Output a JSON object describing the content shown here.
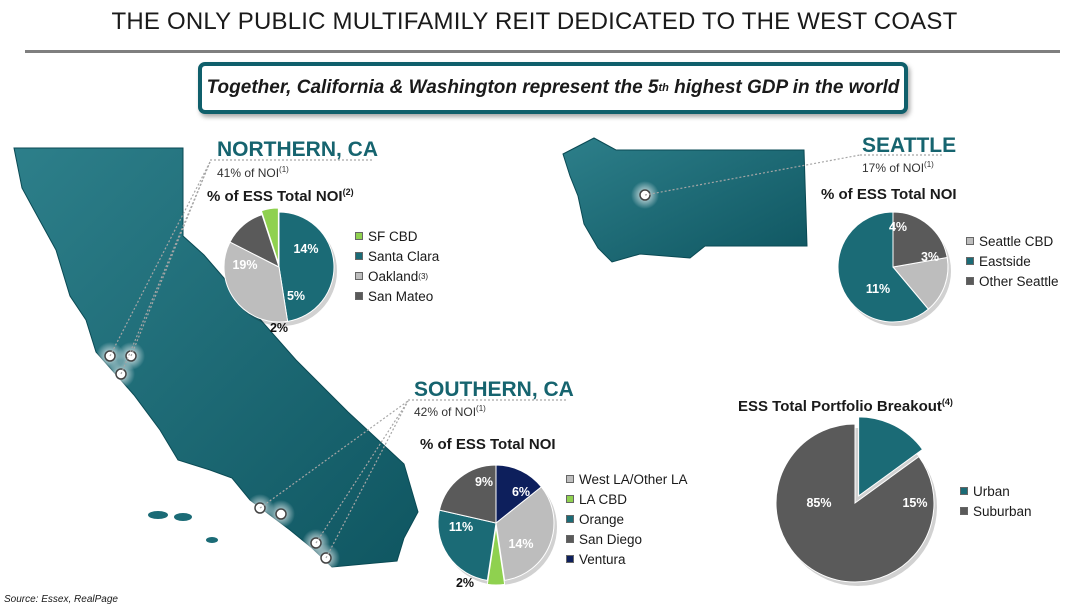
{
  "title": "THE ONLY PUBLIC MULTIFAMILY REIT DEDICATED TO THE WEST COAST",
  "banner": {
    "text": "Together, California & Washington represent the 5",
    "sup": "th",
    "text_after": " highest GDP in the world"
  },
  "source": "Source: Essex, RealPage",
  "colors": {
    "teal_dark": "#0f5f6b",
    "teal": "#1b6b76",
    "grey_light": "#bdbdbd",
    "grey_dark": "#5a5a5a",
    "green": "#8fd14f",
    "navy": "#0d1f5c"
  },
  "northern": {
    "region": "NORTHERN, CA",
    "noi_text": "41% of NOI",
    "noi_sup": "(1)",
    "pie_title": "% of ESS Total NOI",
    "pie_title_sup": "(2)"
  },
  "seattle": {
    "region": "SEATTLE",
    "noi_text": "17% of NOI",
    "noi_sup": "(1)",
    "pie_title": "% of ESS Total NOI"
  },
  "southern": {
    "region": "SOUTHERN, CA",
    "noi_text": "42% of NOI",
    "noi_sup": "(1)",
    "pie_title": "% of ESS Total NOI"
  },
  "portfolio": {
    "pie_title": "ESS Total Portfolio Breakout",
    "pie_title_sup": "(4)"
  },
  "chart_data": [
    {
      "type": "pie",
      "title": "% of ESS Total NOI",
      "categories": [
        "SF CBD",
        "Santa Clara",
        "Oakland",
        "San Mateo"
      ],
      "category_sups": [
        "",
        "",
        "(3)",
        ""
      ],
      "values": [
        2,
        19,
        14,
        5
      ],
      "labels": [
        "2%",
        "19%",
        "14%",
        "5%"
      ],
      "colors": [
        "#8fd14f",
        "#1b6b76",
        "#bdbdbd",
        "#5a5a5a"
      ]
    },
    {
      "type": "pie",
      "title": "% of ESS Total NOI",
      "categories": [
        "Seattle CBD",
        "Eastside",
        "Other Seattle"
      ],
      "values": [
        3,
        11,
        4
      ],
      "labels": [
        "3%",
        "11%",
        "4%"
      ],
      "colors": [
        "#bdbdbd",
        "#1b6b76",
        "#5a5a5a"
      ]
    },
    {
      "type": "pie",
      "title": "% of ESS Total NOI",
      "categories": [
        "West LA/Other LA",
        "LA CBD",
        "Orange",
        "San Diego",
        "Ventura"
      ],
      "values": [
        14,
        2,
        11,
        9,
        6
      ],
      "labels": [
        "14%",
        "2%",
        "11%",
        "9%",
        "6%"
      ],
      "colors": [
        "#bdbdbd",
        "#8fd14f",
        "#1b6b76",
        "#5a5a5a",
        "#0d1f5c"
      ]
    },
    {
      "type": "pie",
      "title": "ESS Total Portfolio Breakout",
      "categories": [
        "Urban",
        "Suburban"
      ],
      "values": [
        15,
        85
      ],
      "labels": [
        "15%",
        "85%"
      ],
      "colors": [
        "#1b6b76",
        "#5a5a5a"
      ]
    }
  ]
}
